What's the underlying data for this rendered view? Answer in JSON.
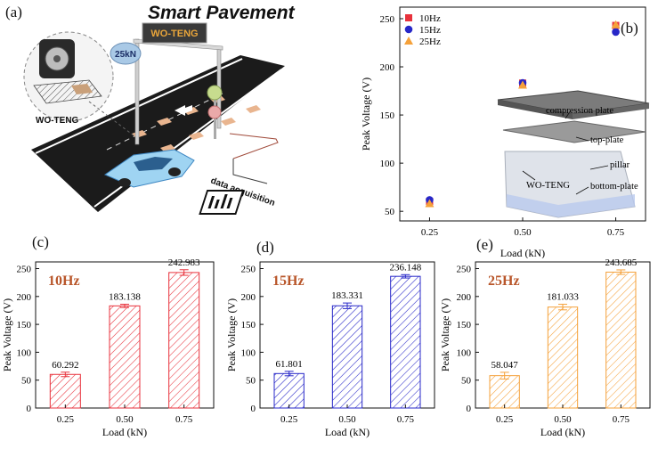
{
  "panel_labels": {
    "a": "(a)",
    "b": "(b)",
    "c": "(c)",
    "d": "(d)",
    "e": "(e)"
  },
  "illustration": {
    "title": "Smart Pavement",
    "sign_text": "WO-TENG",
    "load_badge": "25kN",
    "device_label": "WO-TENG",
    "data_label": "data acquisition"
  },
  "colors": {
    "red": "#e8323c",
    "blue": "#2727c8",
    "orange": "#f5a13a",
    "title": "#b8562a"
  },
  "inset": {
    "labels": [
      "compression plate",
      "top-plate",
      "pillar",
      "WO-TENG",
      "bottom-plate"
    ]
  },
  "chart_data": [
    {
      "type": "scatter",
      "xlabel": "Load (kN)",
      "ylabel": "Peak Voltage (V)",
      "x_ticks": [
        "0.25",
        "0.50",
        "0.75"
      ],
      "y_ticks": [
        "50",
        "100",
        "150",
        "200",
        "250"
      ],
      "ylim": [
        40,
        262
      ],
      "legend_position": "top-left",
      "series": [
        {
          "name": "10Hz",
          "marker": "square",
          "color": "#e8323c",
          "x": [
            0.25,
            0.5,
            0.75
          ],
          "y": [
            60.292,
            183.138,
            242.983
          ]
        },
        {
          "name": "15Hz",
          "marker": "circle",
          "color": "#2727c8",
          "x": [
            0.25,
            0.5,
            0.75
          ],
          "y": [
            61.801,
            183.331,
            236.148
          ]
        },
        {
          "name": "25Hz",
          "marker": "triangle",
          "color": "#f5a13a",
          "x": [
            0.25,
            0.5,
            0.75
          ],
          "y": [
            58.047,
            181.033,
            243.685
          ]
        }
      ]
    },
    {
      "type": "bar",
      "title": "10Hz",
      "xlabel": "Load (kN)",
      "ylabel": "Peak Voltage (V)",
      "categories": [
        "0.25",
        "0.50",
        "0.75"
      ],
      "values": [
        60.292,
        183.138,
        242.983
      ],
      "errors": [
        4,
        3,
        5
      ],
      "value_labels": [
        "60.292",
        "183.138",
        "242.983"
      ],
      "ylim": [
        0,
        262
      ],
      "y_ticks": [
        "0",
        "50",
        "100",
        "150",
        "200",
        "250"
      ],
      "color": "#e8323c"
    },
    {
      "type": "bar",
      "title": "15Hz",
      "xlabel": "Load (kN)",
      "ylabel": "Peak Voltage (V)",
      "categories": [
        "0.25",
        "0.50",
        "0.75"
      ],
      "values": [
        61.801,
        183.331,
        236.148
      ],
      "errors": [
        4,
        5,
        3
      ],
      "value_labels": [
        "61.801",
        "183.331",
        "236.148"
      ],
      "ylim": [
        0,
        262
      ],
      "y_ticks": [
        "0",
        "50",
        "100",
        "150",
        "200",
        "250"
      ],
      "color": "#2727c8"
    },
    {
      "type": "bar",
      "title": "25Hz",
      "xlabel": "Load (kN)",
      "ylabel": "Peak Voltage (V)",
      "categories": [
        "0.25",
        "0.50",
        "0.75"
      ],
      "values": [
        58.047,
        181.033,
        243.685
      ],
      "errors": [
        6,
        5,
        4
      ],
      "value_labels": [
        "58.047",
        "181.033",
        "243.685"
      ],
      "ylim": [
        0,
        262
      ],
      "y_ticks": [
        "0",
        "50",
        "100",
        "150",
        "200",
        "250"
      ],
      "color": "#f5a13a"
    }
  ]
}
